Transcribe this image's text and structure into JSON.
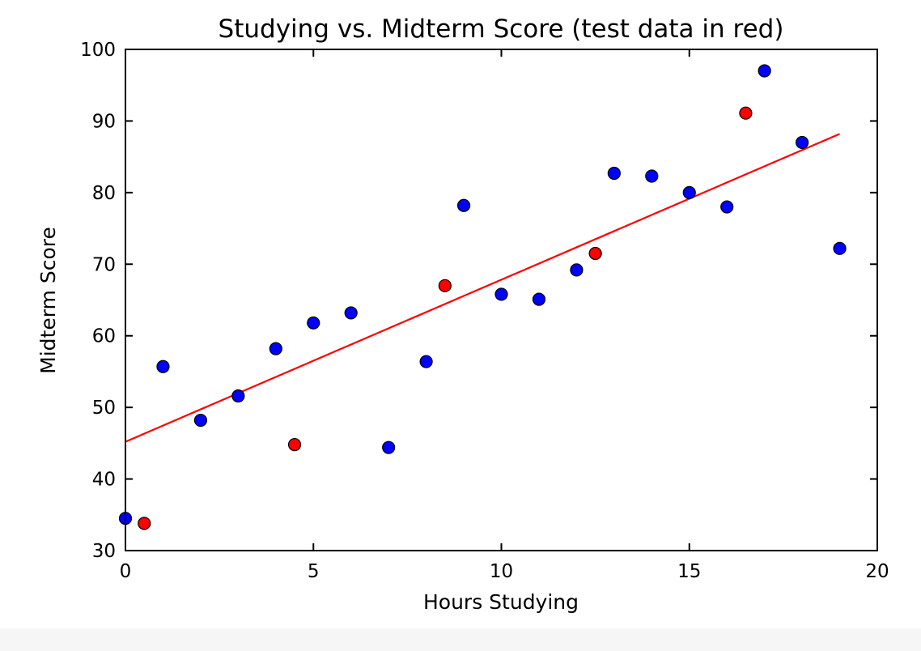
{
  "chart_data": {
    "type": "scatter",
    "title": "Studying vs. Midterm Score (test data in red)",
    "xlabel": "Hours Studying",
    "ylabel": "Midterm Score",
    "xlim": [
      0,
      20
    ],
    "ylim": [
      30,
      100
    ],
    "xticks": [
      "0",
      "5",
      "10",
      "15",
      "20"
    ],
    "yticks": [
      "30",
      "40",
      "50",
      "60",
      "70",
      "80",
      "90",
      "100"
    ],
    "grid": false,
    "series": [
      {
        "color": "#0000ff",
        "points": [
          [
            0,
            34.5
          ],
          [
            1,
            55.7
          ],
          [
            2,
            48.2
          ],
          [
            3,
            51.6
          ],
          [
            4,
            58.2
          ],
          [
            5,
            61.8
          ],
          [
            6,
            63.2
          ],
          [
            7,
            44.4
          ],
          [
            8,
            56.4
          ],
          [
            9,
            78.2
          ],
          [
            10,
            65.8
          ],
          [
            11,
            65.1
          ],
          [
            12,
            69.2
          ],
          [
            13,
            82.7
          ],
          [
            14,
            82.3
          ],
          [
            15,
            80.0
          ],
          [
            16,
            78.0
          ],
          [
            17,
            97.0
          ],
          [
            18,
            87.0
          ],
          [
            19,
            72.2
          ]
        ]
      },
      {
        "color": "#ff0000",
        "points": [
          [
            0.5,
            33.8
          ],
          [
            4.5,
            44.8
          ],
          [
            8.5,
            67.0
          ],
          [
            12.5,
            71.5
          ],
          [
            16.5,
            91.1
          ]
        ]
      }
    ],
    "fit_line": {
      "color": "#ff0000",
      "x": [
        0,
        19
      ],
      "y": [
        45.2,
        88.2
      ]
    }
  }
}
